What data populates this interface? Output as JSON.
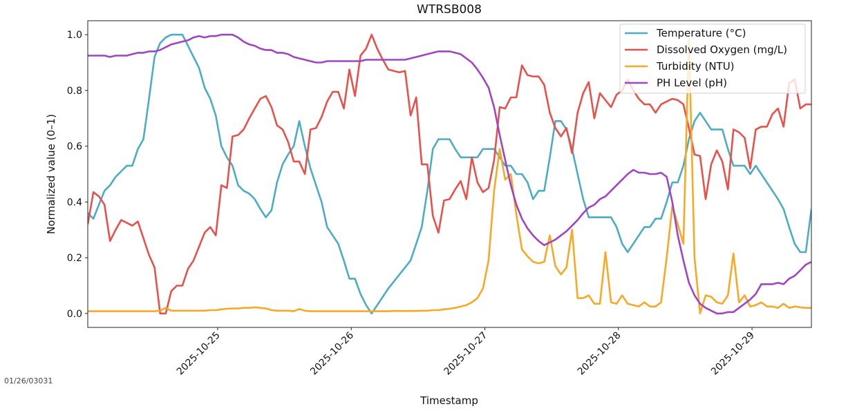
{
  "footer_stamp": "01/26/03031",
  "chart_data": {
    "type": "line",
    "title": "WTRSB008",
    "xlabel": "Timestamp",
    "ylabel": "Normalized value (0–1)",
    "xlim": [
      "2025-10-24 00:40",
      "2025-10-29 10:40"
    ],
    "ylim": [
      -0.05,
      1.05
    ],
    "x_ticks": [
      "2025-10-25",
      "2025-10-26",
      "2025-10-27",
      "2025-10-28",
      "2025-10-29"
    ],
    "y_ticks": [
      "0.0",
      "0.2",
      "0.4",
      "0.6",
      "0.8",
      "1.0"
    ],
    "grid": false,
    "legend_position": "top-right",
    "x": [
      "2025-10-24 00:40",
      "2025-10-24 01:40",
      "2025-10-24 02:40",
      "2025-10-24 03:40",
      "2025-10-24 04:40",
      "2025-10-24 05:40",
      "2025-10-24 06:40",
      "2025-10-24 07:40",
      "2025-10-24 08:40",
      "2025-10-24 09:40",
      "2025-10-24 10:40",
      "2025-10-24 11:40",
      "2025-10-24 12:40",
      "2025-10-24 13:40",
      "2025-10-24 14:40",
      "2025-10-24 15:40",
      "2025-10-24 16:40",
      "2025-10-24 17:40",
      "2025-10-24 18:40",
      "2025-10-24 19:40",
      "2025-10-24 20:40",
      "2025-10-24 21:40",
      "2025-10-24 22:40",
      "2025-10-24 23:40",
      "2025-10-25 00:40",
      "2025-10-25 01:40",
      "2025-10-25 02:40",
      "2025-10-25 03:40",
      "2025-10-25 04:40",
      "2025-10-25 05:40",
      "2025-10-25 06:40",
      "2025-10-25 07:40",
      "2025-10-25 08:40",
      "2025-10-25 09:40",
      "2025-10-25 10:40",
      "2025-10-25 11:40",
      "2025-10-25 12:40",
      "2025-10-25 13:40",
      "2025-10-25 14:40",
      "2025-10-25 15:40",
      "2025-10-25 16:40",
      "2025-10-25 17:40",
      "2025-10-25 18:40",
      "2025-10-25 19:40",
      "2025-10-25 20:40",
      "2025-10-25 21:40",
      "2025-10-25 22:40",
      "2025-10-25 23:40",
      "2025-10-26 00:40",
      "2025-10-26 01:40",
      "2025-10-26 02:40",
      "2025-10-26 03:40",
      "2025-10-26 04:40",
      "2025-10-26 05:40",
      "2025-10-26 06:40",
      "2025-10-26 07:40",
      "2025-10-26 08:40",
      "2025-10-26 09:40",
      "2025-10-26 10:40",
      "2025-10-26 11:40",
      "2025-10-26 12:40",
      "2025-10-26 13:40",
      "2025-10-26 14:40",
      "2025-10-26 15:40",
      "2025-10-26 16:40",
      "2025-10-26 17:40",
      "2025-10-26 18:40",
      "2025-10-26 19:40",
      "2025-10-26 20:40",
      "2025-10-26 21:40",
      "2025-10-26 22:40",
      "2025-10-26 23:40",
      "2025-10-27 00:40",
      "2025-10-27 01:40",
      "2025-10-27 02:40",
      "2025-10-27 03:40",
      "2025-10-27 04:40",
      "2025-10-27 05:40",
      "2025-10-27 06:40",
      "2025-10-27 07:40",
      "2025-10-27 08:40",
      "2025-10-27 09:40",
      "2025-10-27 10:40",
      "2025-10-27 11:40",
      "2025-10-27 12:40",
      "2025-10-27 13:40",
      "2025-10-27 14:40",
      "2025-10-27 15:40",
      "2025-10-27 16:40",
      "2025-10-27 17:40",
      "2025-10-27 18:40",
      "2025-10-27 19:40",
      "2025-10-27 20:40",
      "2025-10-27 21:40",
      "2025-10-27 22:40",
      "2025-10-27 23:40",
      "2025-10-28 00:40",
      "2025-10-28 01:40",
      "2025-10-28 02:40",
      "2025-10-28 03:40",
      "2025-10-28 04:40",
      "2025-10-28 05:40",
      "2025-10-28 06:40",
      "2025-10-28 07:40",
      "2025-10-28 08:40",
      "2025-10-28 09:40",
      "2025-10-28 10:40",
      "2025-10-28 11:40",
      "2025-10-28 12:40",
      "2025-10-28 13:40",
      "2025-10-28 14:40",
      "2025-10-28 15:40",
      "2025-10-28 16:40",
      "2025-10-28 17:40",
      "2025-10-28 18:40",
      "2025-10-28 19:40",
      "2025-10-28 20:40",
      "2025-10-28 21:40",
      "2025-10-28 22:40",
      "2025-10-28 23:40",
      "2025-10-29 00:40",
      "2025-10-29 01:40",
      "2025-10-29 02:40",
      "2025-10-29 03:40",
      "2025-10-29 04:40",
      "2025-10-29 05:40",
      "2025-10-29 06:40",
      "2025-10-29 07:40",
      "2025-10-29 08:40",
      "2025-10-29 09:40",
      "2025-10-29 10:40"
    ],
    "series": [
      {
        "name": "Temperature (°C)",
        "color": "#4bacc6",
        "values": [
          0.36,
          0.34,
          0.39,
          0.44,
          0.46,
          0.49,
          0.51,
          0.53,
          0.53,
          0.59,
          0.625,
          0.77,
          0.92,
          0.97,
          0.99,
          1.0,
          1.0,
          1.0,
          0.96,
          0.92,
          0.88,
          0.81,
          0.77,
          0.71,
          0.6,
          0.56,
          0.53,
          0.46,
          0.44,
          0.43,
          0.41,
          0.375,
          0.345,
          0.37,
          0.47,
          0.535,
          0.57,
          0.6,
          0.69,
          0.6,
          0.52,
          0.46,
          0.4,
          0.31,
          0.28,
          0.25,
          0.19,
          0.125,
          0.125,
          0.07,
          0.03,
          0.0,
          0.03,
          0.06,
          0.09,
          0.115,
          0.14,
          0.165,
          0.19,
          0.25,
          0.31,
          0.44,
          0.59,
          0.625,
          0.625,
          0.625,
          0.59,
          0.56,
          0.56,
          0.56,
          0.56,
          0.59,
          0.59,
          0.59,
          0.56,
          0.53,
          0.53,
          0.5,
          0.5,
          0.47,
          0.41,
          0.44,
          0.44,
          0.56,
          0.69,
          0.69,
          0.66,
          0.59,
          0.5,
          0.41,
          0.345,
          0.345,
          0.345,
          0.345,
          0.345,
          0.31,
          0.25,
          0.22,
          0.25,
          0.28,
          0.31,
          0.31,
          0.34,
          0.34,
          0.4,
          0.47,
          0.47,
          0.53,
          0.625,
          0.69,
          0.72,
          0.69,
          0.66,
          0.66,
          0.66,
          0.59,
          0.53,
          0.53,
          0.53,
          0.5,
          0.53,
          0.5,
          0.47,
          0.44,
          0.41,
          0.375,
          0.31,
          0.25,
          0.22,
          0.22,
          0.375
        ]
      },
      {
        "name": "Dissolved Oxygen (mg/L)",
        "color": "#e8504a",
        "values": [
          0.32,
          0.435,
          0.42,
          0.39,
          0.26,
          0.3,
          0.335,
          0.325,
          0.315,
          0.33,
          0.27,
          0.21,
          0.165,
          0.0,
          0.0,
          0.08,
          0.1,
          0.1,
          0.16,
          0.19,
          0.24,
          0.29,
          0.31,
          0.28,
          0.46,
          0.45,
          0.635,
          0.64,
          0.66,
          0.7,
          0.735,
          0.77,
          0.78,
          0.74,
          0.675,
          0.66,
          0.615,
          0.545,
          0.545,
          0.5,
          0.66,
          0.665,
          0.705,
          0.76,
          0.795,
          0.795,
          0.735,
          0.875,
          0.78,
          0.925,
          0.95,
          1.0,
          0.95,
          0.91,
          0.875,
          0.87,
          0.865,
          0.87,
          0.71,
          0.775,
          0.535,
          0.535,
          0.35,
          0.29,
          0.405,
          0.41,
          0.445,
          0.475,
          0.41,
          0.56,
          0.47,
          0.435,
          0.45,
          0.55,
          0.74,
          0.735,
          0.775,
          0.775,
          0.89,
          0.855,
          0.85,
          0.85,
          0.82,
          0.72,
          0.665,
          0.635,
          0.665,
          0.575,
          0.72,
          0.79,
          0.83,
          0.7,
          0.79,
          0.765,
          0.74,
          0.785,
          0.8,
          0.84,
          0.8,
          0.77,
          0.75,
          0.75,
          0.72,
          0.75,
          0.76,
          0.77,
          0.765,
          0.75,
          0.665,
          0.57,
          0.565,
          0.41,
          0.535,
          0.585,
          0.545,
          0.445,
          0.66,
          0.65,
          0.63,
          0.52,
          0.66,
          0.67,
          0.67,
          0.715,
          0.735,
          0.67,
          0.825,
          0.84,
          0.735,
          0.75,
          0.75
        ]
      },
      {
        "name": "Turbidity (NTU)",
        "color": "#f9a825",
        "values": [
          0.008,
          0.008,
          0.008,
          0.008,
          0.008,
          0.008,
          0.008,
          0.008,
          0.008,
          0.008,
          0.008,
          0.008,
          0.008,
          0.01,
          0.02,
          0.01,
          0.01,
          0.01,
          0.01,
          0.01,
          0.01,
          0.01,
          0.012,
          0.012,
          0.015,
          0.017,
          0.018,
          0.018,
          0.02,
          0.02,
          0.022,
          0.02,
          0.018,
          0.012,
          0.01,
          0.01,
          0.01,
          0.008,
          0.016,
          0.01,
          0.008,
          0.008,
          0.008,
          0.008,
          0.008,
          0.008,
          0.008,
          0.008,
          0.008,
          0.008,
          0.008,
          0.008,
          0.008,
          0.008,
          0.008,
          0.009,
          0.009,
          0.009,
          0.009,
          0.009,
          0.01,
          0.01,
          0.012,
          0.012,
          0.015,
          0.017,
          0.02,
          0.025,
          0.03,
          0.04,
          0.055,
          0.09,
          0.19,
          0.44,
          0.59,
          0.48,
          0.5,
          0.355,
          0.23,
          0.205,
          0.185,
          0.18,
          0.185,
          0.28,
          0.17,
          0.14,
          0.165,
          0.3,
          0.055,
          0.055,
          0.065,
          0.035,
          0.035,
          0.22,
          0.04,
          0.035,
          0.065,
          0.035,
          0.03,
          0.025,
          0.04,
          0.025,
          0.025,
          0.04,
          0.2,
          0.385,
          0.32,
          0.25,
          0.985,
          0.2,
          0.0,
          0.065,
          0.06,
          0.04,
          0.035,
          0.065,
          0.215,
          0.04,
          0.065,
          0.025,
          0.03,
          0.04,
          0.025,
          0.025,
          0.02,
          0.035,
          0.02,
          0.025,
          0.022,
          0.02,
          0.02
        ]
      },
      {
        "name": "PH Level (pH)",
        "color": "#a044c4",
        "values": [
          0.925,
          0.925,
          0.925,
          0.925,
          0.92,
          0.925,
          0.925,
          0.925,
          0.93,
          0.935,
          0.935,
          0.94,
          0.94,
          0.945,
          0.955,
          0.965,
          0.97,
          0.975,
          0.98,
          0.99,
          0.995,
          0.99,
          0.995,
          0.995,
          1.0,
          1.0,
          1.0,
          0.99,
          0.975,
          0.965,
          0.96,
          0.95,
          0.945,
          0.945,
          0.935,
          0.935,
          0.93,
          0.92,
          0.915,
          0.91,
          0.905,
          0.9,
          0.9,
          0.905,
          0.905,
          0.905,
          0.905,
          0.905,
          0.905,
          0.905,
          0.91,
          0.91,
          0.91,
          0.91,
          0.91,
          0.91,
          0.91,
          0.91,
          0.915,
          0.92,
          0.925,
          0.93,
          0.935,
          0.94,
          0.94,
          0.94,
          0.935,
          0.93,
          0.915,
          0.9,
          0.875,
          0.845,
          0.81,
          0.74,
          0.64,
          0.55,
          0.46,
          0.39,
          0.34,
          0.305,
          0.28,
          0.26,
          0.245,
          0.255,
          0.265,
          0.28,
          0.295,
          0.315,
          0.335,
          0.36,
          0.38,
          0.39,
          0.41,
          0.42,
          0.44,
          0.46,
          0.48,
          0.5,
          0.515,
          0.505,
          0.505,
          0.5,
          0.5,
          0.505,
          0.49,
          0.4,
          0.28,
          0.19,
          0.11,
          0.065,
          0.035,
          0.02,
          0.01,
          0.0,
          0.0,
          0.005,
          0.005,
          0.02,
          0.035,
          0.05,
          0.07,
          0.105,
          0.105,
          0.105,
          0.11,
          0.105,
          0.125,
          0.135,
          0.155,
          0.175,
          0.185
        ]
      }
    ]
  }
}
